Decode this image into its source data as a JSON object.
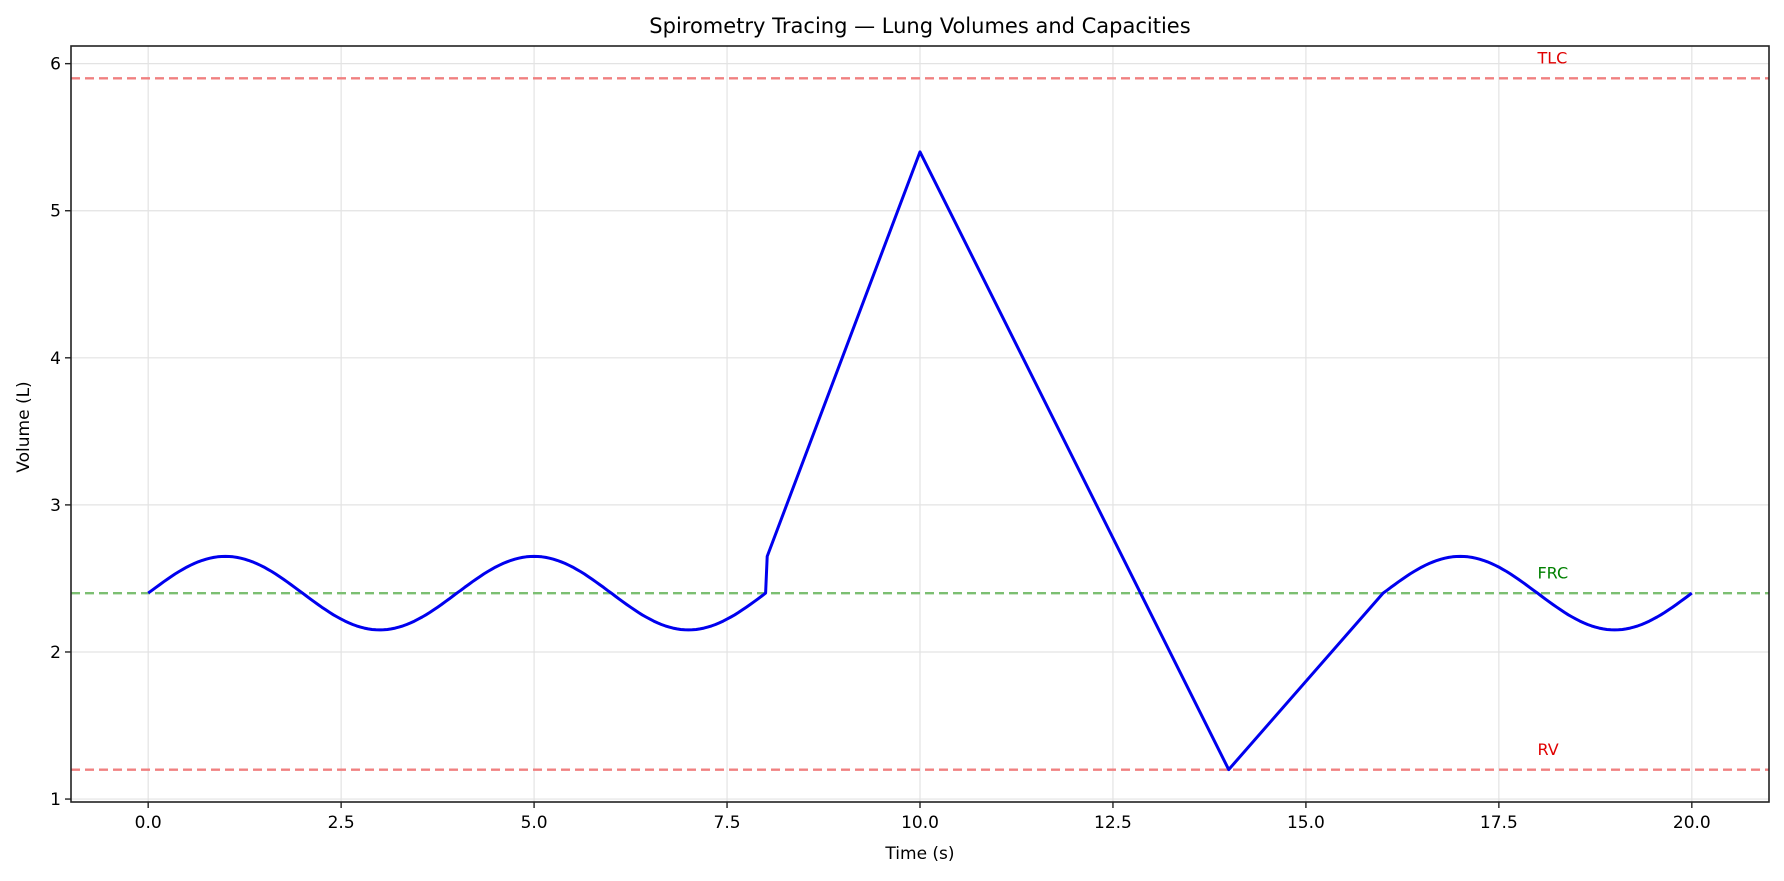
{
  "chart_data": {
    "type": "line",
    "title": "Spirometry Tracing — Lung Volumes and Capacities",
    "xlabel": "Time (s)",
    "ylabel": "Volume (L)",
    "xlim": [
      -1.0,
      21.0
    ],
    "ylim": [
      0.98,
      6.12
    ],
    "xticks": [
      0.0,
      2.5,
      5.0,
      7.5,
      10.0,
      12.5,
      15.0,
      17.5,
      20.0
    ],
    "xtick_labels": [
      "0.0",
      "2.5",
      "5.0",
      "7.5",
      "10.0",
      "12.5",
      "15.0",
      "17.5",
      "20.0"
    ],
    "yticks": [
      1,
      2,
      3,
      4,
      5,
      6
    ],
    "ytick_labels": [
      "1",
      "2",
      "3",
      "4",
      "5",
      "6"
    ],
    "grid": true,
    "legend": null,
    "series": [
      {
        "name": "Volume trace",
        "color": "#0000ee",
        "description": "Tidal breathing (sine, mean 2.4 L, amplitude 0.25 L, period 4 s) from 0–8 s; jump to 2.65 L at 8 s; linear inspiration to 5.4 L at 10 s; linear forced expiration to 1.2 L at 14 s; linear rise to 2.4 L at 16 s; tidal breathing 16–20 s",
        "x": [
          0,
          0.5,
          1,
          1.5,
          2,
          2.5,
          3,
          3.5,
          4,
          4.5,
          5,
          5.5,
          6,
          6.5,
          7,
          7.5,
          8,
          8.02,
          10,
          14,
          16,
          16.5,
          17,
          17.5,
          18,
          18.5,
          19,
          19.5,
          20
        ],
        "y": [
          2.4,
          2.577,
          2.65,
          2.577,
          2.4,
          2.223,
          2.15,
          2.223,
          2.4,
          2.577,
          2.65,
          2.577,
          2.4,
          2.223,
          2.15,
          2.223,
          2.4,
          2.65,
          5.4,
          1.2,
          2.4,
          2.577,
          2.65,
          2.577,
          2.4,
          2.223,
          2.15,
          2.223,
          2.4
        ]
      }
    ],
    "reference_lines": [
      {
        "name": "TLC",
        "y": 5.9,
        "color": "#f08080",
        "label_color": "#e00000",
        "label_x": 18.0,
        "label_y": 6.0,
        "style": "dashed"
      },
      {
        "name": "FRC",
        "y": 2.4,
        "color": "#7cbf72",
        "label_color": "#008000",
        "label_x": 18.0,
        "label_y": 2.5,
        "style": "dashed"
      },
      {
        "name": "RV",
        "y": 1.2,
        "color": "#f08080",
        "label_color": "#e00000",
        "label_x": 18.0,
        "label_y": 1.3,
        "style": "dashed"
      }
    ]
  }
}
